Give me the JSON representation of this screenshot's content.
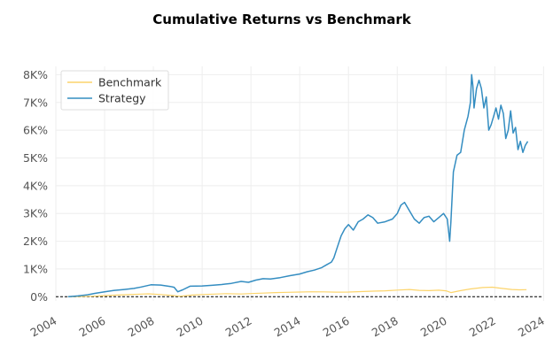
{
  "chart_data": {
    "type": "line",
    "title": "Cumulative Returns vs Benchmark",
    "xlabel": "",
    "ylabel": "",
    "x_ticks": [
      "2004",
      "2006",
      "2008",
      "2010",
      "2012",
      "2014",
      "2016",
      "2018",
      "2020",
      "2022",
      "2024"
    ],
    "y_ticks": [
      "0%",
      "1K%",
      "2K%",
      "3K%",
      "4K%",
      "5K%",
      "6K%",
      "7K%",
      "8K%"
    ],
    "y_tick_values": [
      0,
      1000,
      2000,
      3000,
      4000,
      5000,
      6000,
      7000,
      8000
    ],
    "xlim": [
      2004.0,
      2023.95
    ],
    "ylim": [
      -150,
      8300
    ],
    "grid": true,
    "legend_position": "top-left",
    "baseline": 0,
    "series": [
      {
        "name": "Benchmark",
        "color": "#fcd46b",
        "x": [
          2004.5,
          2005.0,
          2005.5,
          2006.0,
          2006.5,
          2007.0,
          2007.5,
          2007.8,
          2008.3,
          2008.8,
          2009.1,
          2009.6,
          2010.0,
          2010.5,
          2011.0,
          2011.6,
          2012.0,
          2012.5,
          2013.0,
          2013.5,
          2014.0,
          2014.5,
          2015.0,
          2015.5,
          2016.0,
          2016.5,
          2017.0,
          2017.5,
          2018.0,
          2018.5,
          2018.9,
          2019.3,
          2019.7,
          2020.0,
          2020.2,
          2020.6,
          2021.0,
          2021.5,
          2021.9,
          2022.3,
          2022.7,
          2023.0,
          2023.3
        ],
        "y": [
          0,
          10,
          20,
          40,
          60,
          75,
          95,
          105,
          80,
          45,
          20,
          60,
          80,
          95,
          110,
          100,
          115,
          130,
          150,
          160,
          170,
          180,
          175,
          165,
          170,
          185,
          200,
          215,
          240,
          260,
          230,
          220,
          235,
          215,
          150,
          220,
          280,
          330,
          345,
          300,
          260,
          250,
          255
        ]
      },
      {
        "name": "Strategy",
        "color": "#348dc1",
        "x": [
          2004.5,
          2004.9,
          2005.3,
          2005.6,
          2006.0,
          2006.4,
          2006.8,
          2007.2,
          2007.5,
          2007.9,
          2008.3,
          2008.7,
          2008.85,
          2009.0,
          2009.2,
          2009.5,
          2010.0,
          2010.4,
          2010.8,
          2011.2,
          2011.6,
          2011.9,
          2012.2,
          2012.5,
          2012.8,
          2013.2,
          2013.6,
          2014.0,
          2014.3,
          2014.6,
          2014.9,
          2015.1,
          2015.3,
          2015.4,
          2015.55,
          2015.7,
          2015.85,
          2016.0,
          2016.2,
          2016.4,
          2016.6,
          2016.8,
          2017.0,
          2017.2,
          2017.5,
          2017.8,
          2018.0,
          2018.15,
          2018.3,
          2018.5,
          2018.7,
          2018.9,
          2019.1,
          2019.3,
          2019.5,
          2019.7,
          2019.9,
          2020.05,
          2020.15,
          2020.2,
          2020.3,
          2020.45,
          2020.6,
          2020.75,
          2020.9,
          2021.0,
          2021.05,
          2021.1,
          2021.15,
          2021.25,
          2021.35,
          2021.45,
          2021.55,
          2021.65,
          2021.75,
          2021.85,
          2021.95,
          2022.05,
          2022.15,
          2022.25,
          2022.35,
          2022.45,
          2022.55,
          2022.65,
          2022.75,
          2022.85,
          2022.95,
          2023.05,
          2023.15,
          2023.25,
          2023.35
        ],
        "y": [
          0,
          30,
          70,
          120,
          180,
          230,
          260,
          300,
          350,
          430,
          420,
          370,
          340,
          180,
          250,
          380,
          390,
          410,
          440,
          480,
          550,
          520,
          600,
          650,
          640,
          690,
          760,
          820,
          900,
          960,
          1050,
          1150,
          1250,
          1400,
          1800,
          2200,
          2450,
          2600,
          2400,
          2700,
          2800,
          2950,
          2850,
          2650,
          2700,
          2800,
          3000,
          3300,
          3400,
          3100,
          2800,
          2650,
          2850,
          2900,
          2700,
          2850,
          3000,
          2800,
          2000,
          2700,
          4500,
          5100,
          5200,
          6000,
          6500,
          7000,
          8000,
          7600,
          6800,
          7500,
          7800,
          7500,
          6800,
          7200,
          6000,
          6200,
          6500,
          6800,
          6400,
          6900,
          6600,
          5700,
          6000,
          6700,
          5900,
          6100,
          5300,
          5600,
          5200,
          5450,
          5600
        ]
      }
    ]
  }
}
